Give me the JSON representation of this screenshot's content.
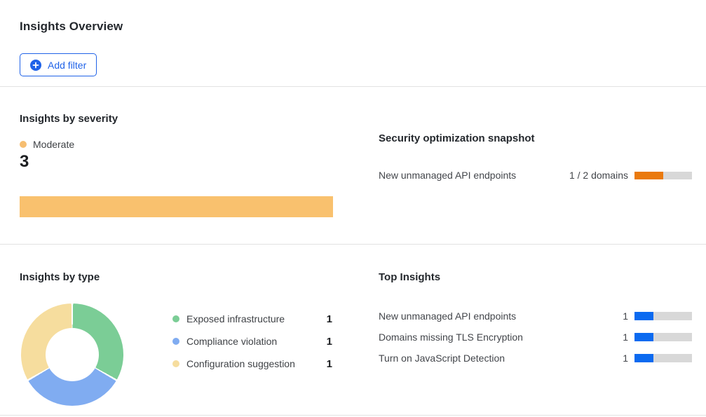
{
  "page": {
    "title": "Insights Overview"
  },
  "toolbar": {
    "add_filter_label": "Add filter"
  },
  "colors": {
    "accent_blue": "#2063e8",
    "bar_blue": "#0b6af0",
    "orange": "#ea7a0e",
    "light_orange": "#f9c16e",
    "green": "#7bcd96",
    "legend_blue": "#80acf1",
    "yellow": "#f6dd9e",
    "track_gray": "#d8d8d8"
  },
  "severity_section": {
    "title": "Insights by severity",
    "legend_label": "Moderate",
    "dot_color": "#f6be71",
    "count": "3",
    "bar": {
      "value": 3,
      "max": 3,
      "color": "#f9c16e"
    }
  },
  "snapshot_section": {
    "title": "Security optimization snapshot",
    "rows": [
      {
        "label": "New unmanaged API endpoints",
        "value_text": "1 / 2 domains",
        "value": 1,
        "max": 2,
        "color": "#ea7a0e"
      }
    ]
  },
  "type_section": {
    "title": "Insights by type",
    "legend": [
      {
        "label": "Exposed infrastructure",
        "value": "1",
        "color": "#7bcd96"
      },
      {
        "label": "Compliance violation",
        "value": "1",
        "color": "#80acf1"
      },
      {
        "label": "Configuration suggestion",
        "value": "1",
        "color": "#f6dd9e"
      }
    ]
  },
  "top_section": {
    "title": "Top Insights",
    "rows": [
      {
        "label": "New unmanaged API endpoints",
        "value": "1",
        "bar": {
          "value": 1,
          "max": 3,
          "color": "#0b6af0"
        }
      },
      {
        "label": "Domains missing TLS Encryption",
        "value": "1",
        "bar": {
          "value": 1,
          "max": 3,
          "color": "#0b6af0"
        }
      },
      {
        "label": "Turn on JavaScript Detection",
        "value": "1",
        "bar": {
          "value": 1,
          "max": 3,
          "color": "#0b6af0"
        }
      }
    ]
  },
  "chart_data": [
    {
      "type": "bar",
      "title": "Insights by severity",
      "orientation": "horizontal",
      "categories": [
        "Moderate"
      ],
      "values": [
        3
      ],
      "colors": [
        "#f9c16e"
      ],
      "xlim": [
        0,
        3
      ],
      "legend_position": "top",
      "grid": false
    },
    {
      "type": "pie",
      "donut": true,
      "title": "Insights by type",
      "labels": [
        "Exposed infrastructure",
        "Compliance violation",
        "Configuration suggestion"
      ],
      "values": [
        1,
        1,
        1
      ],
      "colors": [
        "#7bcd96",
        "#80acf1",
        "#f6dd9e"
      ],
      "legend_position": "right",
      "start_angle_deg": 0,
      "direction": "clockwise"
    },
    {
      "type": "bar",
      "title": "Top Insights",
      "orientation": "horizontal",
      "categories": [
        "New unmanaged API endpoints",
        "Domains missing TLS Encryption",
        "Turn on JavaScript Detection"
      ],
      "values": [
        1,
        1,
        1
      ],
      "colors": [
        "#0b6af0",
        "#0b6af0",
        "#0b6af0"
      ],
      "xlim": [
        0,
        3
      ],
      "grid": false
    },
    {
      "type": "bar",
      "title": "Security optimization snapshot",
      "orientation": "horizontal",
      "categories": [
        "New unmanaged API endpoints"
      ],
      "values": [
        1
      ],
      "value_labels": [
        "1 / 2 domains"
      ],
      "colors": [
        "#ea7a0e"
      ],
      "xlim": [
        0,
        2
      ],
      "grid": false
    }
  ]
}
